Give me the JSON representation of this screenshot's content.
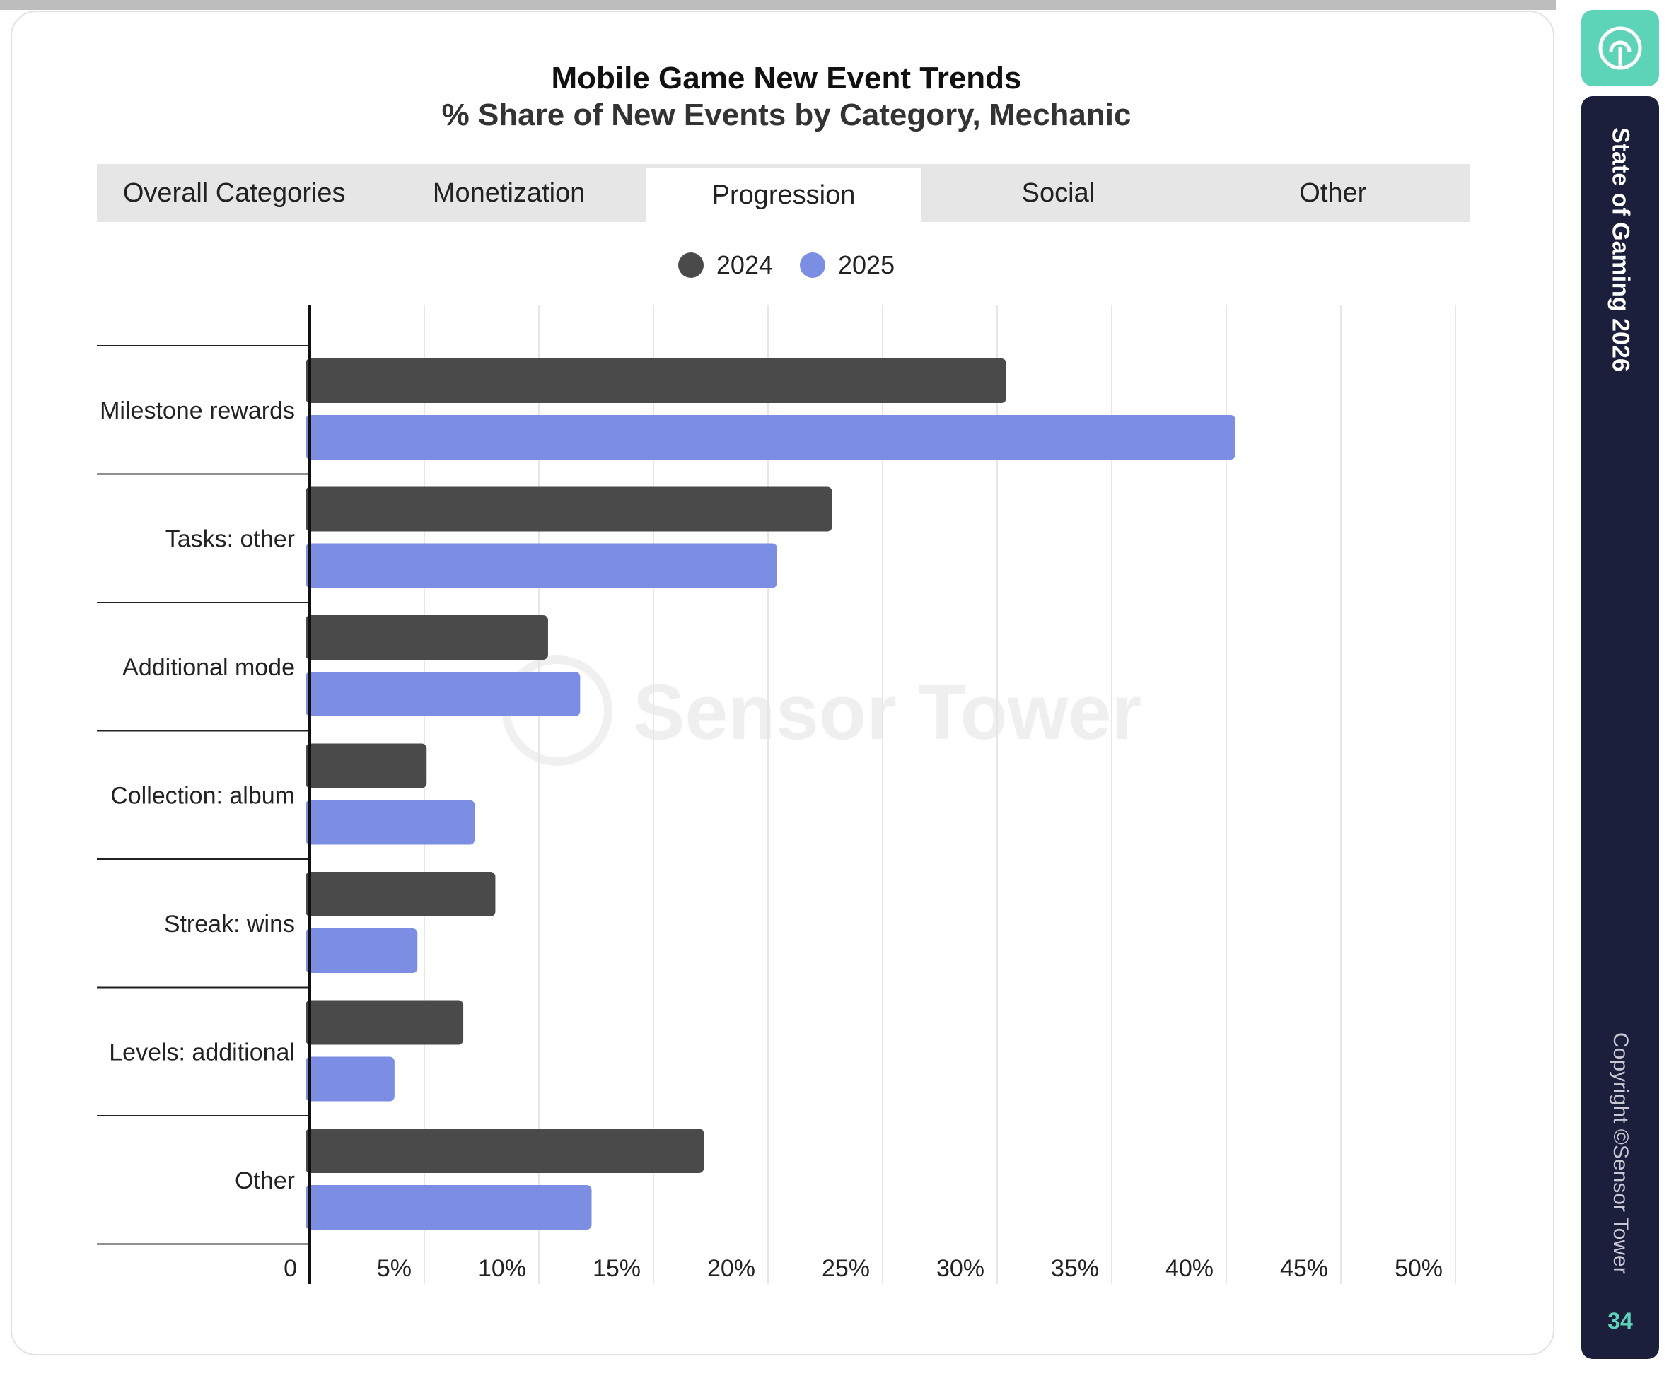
{
  "chart_data": {
    "type": "bar",
    "orientation": "horizontal",
    "title": "Mobile Game New Event Trends",
    "subtitle": "% Share of New Events by Category, Mechanic",
    "categories": [
      "Milestone rewards",
      "Tasks: other",
      "Additional mode",
      "Collection: album",
      "Streak: wins",
      "Levels: additional",
      "Other"
    ],
    "series": [
      {
        "name": "2024",
        "color": "#4a4a4a",
        "values": [
          30.4,
          22.8,
          10.4,
          5.1,
          8.1,
          6.7,
          17.2
        ]
      },
      {
        "name": "2025",
        "color": "#7b8ee3",
        "values": [
          40.4,
          20.4,
          11.8,
          7.2,
          4.7,
          3.7,
          12.3
        ]
      }
    ],
    "xlim": [
      0,
      50
    ],
    "xticks": [
      "0",
      "5%",
      "10%",
      "15%",
      "20%",
      "25%",
      "30%",
      "35%",
      "40%",
      "45%",
      "50%"
    ],
    "grid": true,
    "legend": "top-center"
  },
  "tabs": {
    "items": [
      "Overall Categories",
      "Monetization",
      "Progression",
      "Social",
      "Other"
    ],
    "active_index": 2
  },
  "watermark": "Sensor Tower",
  "sidebar": {
    "title": "State of Gaming 2026",
    "copyright": "Copyright ©Sensor Tower",
    "page_number": "34",
    "logo_icon": "sensor-tower-logo-icon"
  }
}
